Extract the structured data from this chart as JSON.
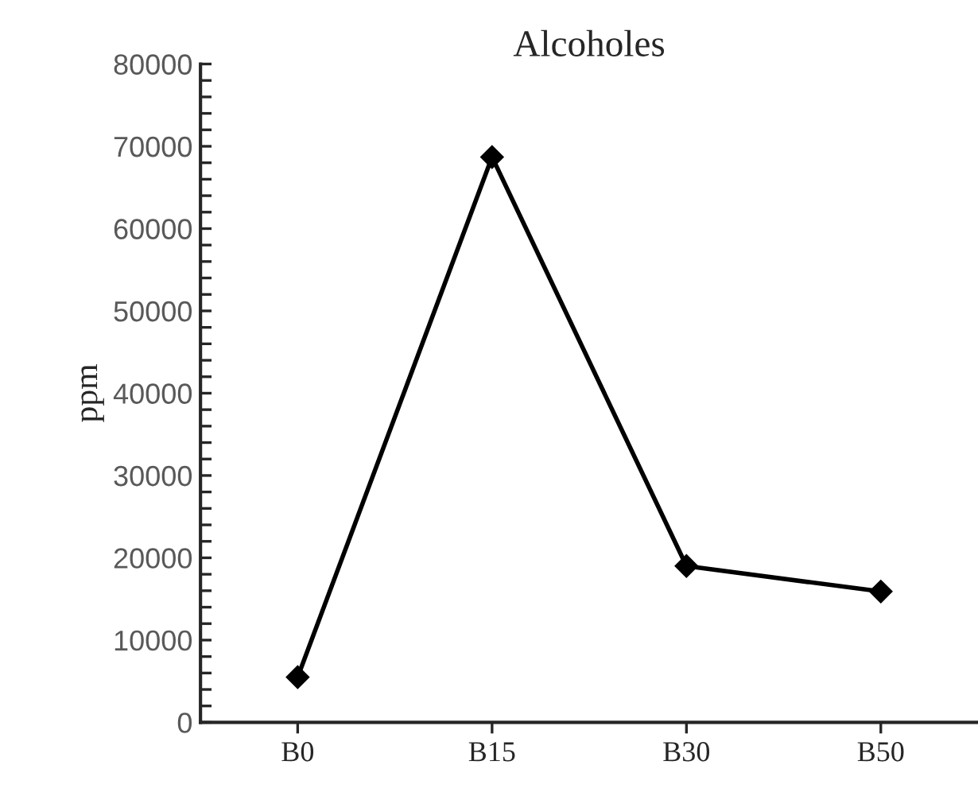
{
  "chart_data": {
    "type": "line",
    "title": "Alcoholes",
    "ylabel": "ppm",
    "categories": [
      "B0",
      "B15",
      "B30",
      "B50"
    ],
    "series": [
      {
        "color": "#000000",
        "values": [
          5500,
          68700,
          19000,
          15900
        ]
      }
    ],
    "marker": "diamond",
    "line_style": "solid",
    "grid": false,
    "ylim": [
      0,
      80000
    ],
    "yticks": [
      0,
      {
        "value": 2000,
        "label": null
      },
      {
        "value": 4000,
        "label": null
      },
      {
        "value": 6000,
        "label": null
      },
      {
        "value": 8000,
        "label": null
      },
      10000,
      {
        "value": 12000,
        "label": null
      },
      {
        "value": 14000,
        "label": null
      },
      {
        "value": 16000,
        "label": null
      },
      {
        "value": 18000,
        "label": null
      },
      20000,
      {
        "value": 22000,
        "label": null
      },
      {
        "value": 24000,
        "label": null
      },
      {
        "value": 26000,
        "label": null
      },
      {
        "value": 28000,
        "label": null
      },
      30000,
      {
        "value": 32000,
        "label": null
      },
      {
        "value": 34000,
        "label": null
      },
      {
        "value": 36000,
        "label": null
      },
      {
        "value": 38000,
        "label": null
      },
      40000,
      {
        "value": 42000,
        "label": null
      },
      {
        "value": 44000,
        "label": null
      },
      {
        "value": 46000,
        "label": null
      },
      {
        "value": 48000,
        "label": null
      },
      50000,
      {
        "value": 52000,
        "label": null
      },
      {
        "value": 54000,
        "label": null
      },
      {
        "value": 56000,
        "label": null
      },
      {
        "value": 58000,
        "label": null
      },
      60000,
      {
        "value": 62000,
        "label": null
      },
      {
        "value": 64000,
        "label": null
      },
      {
        "value": 66000,
        "label": null
      },
      {
        "value": 68000,
        "label": null
      },
      70000,
      {
        "value": 72000,
        "label": null
      },
      {
        "value": 74000,
        "label": null
      },
      {
        "value": 76000,
        "label": null
      },
      {
        "value": 78000,
        "label": null
      },
      80000
    ]
  }
}
